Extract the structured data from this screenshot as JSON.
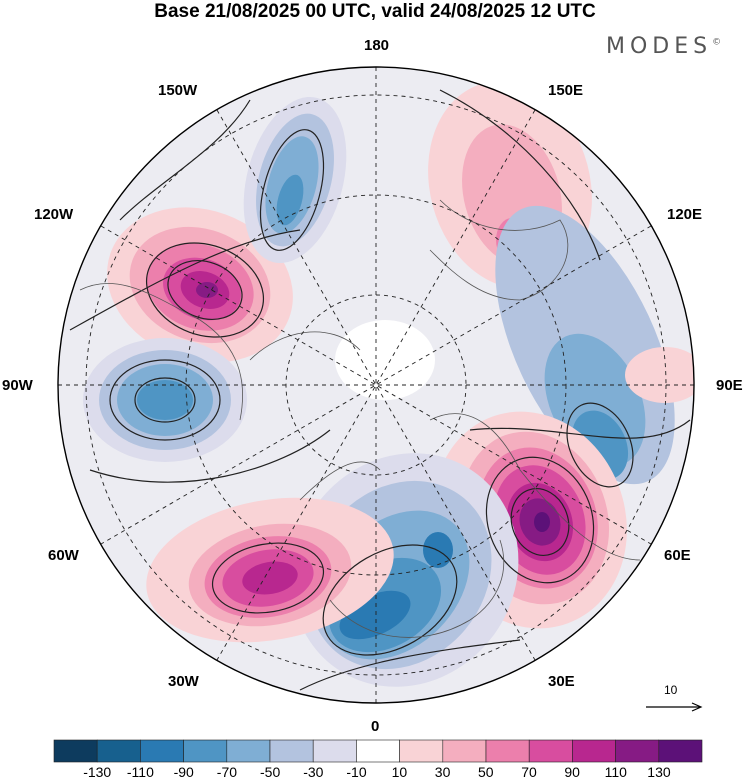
{
  "title": "Base 21/08/2025 00 UTC, valid 24/08/2025 12 UTC",
  "brand": {
    "name": "MODES",
    "mark": "©"
  },
  "longitude_labels": [
    "180",
    "150E",
    "120E",
    "90E",
    "60E",
    "30E",
    "0",
    "30W",
    "60W",
    "90W",
    "120W",
    "150W"
  ],
  "reference_vector": {
    "label": "10"
  },
  "colorbar": {
    "labels": [
      "-130",
      "-110",
      "-90",
      "-70",
      "-50",
      "-30",
      "-10",
      "10",
      "30",
      "50",
      "70",
      "90",
      "110",
      "130"
    ],
    "colors": [
      "#0d3b5e",
      "#17608e",
      "#2a7ab3",
      "#4f95c4",
      "#7faed4",
      "#b3c3df",
      "#dcdcec",
      "#ffffff",
      "#f9d3d6",
      "#f4aebf",
      "#ec7fac",
      "#d84d9f",
      "#b8278f",
      "#861b84",
      "#5c1178"
    ]
  },
  "anomalies": [
    {
      "name": "anom-pos-120w",
      "sign": "positive",
      "peak": 110
    },
    {
      "name": "anom-neg-90w",
      "sign": "negative",
      "peak": -70
    },
    {
      "name": "anom-neg-150w",
      "sign": "negative",
      "peak": -70
    },
    {
      "name": "anom-pos-150e",
      "sign": "positive",
      "peak": 50
    },
    {
      "name": "anom-neg-90e",
      "sign": "negative",
      "peak": -70
    },
    {
      "name": "anom-pos-60e",
      "sign": "positive",
      "peak": 130
    },
    {
      "name": "anom-neg-15e",
      "sign": "negative",
      "peak": -90
    },
    {
      "name": "anom-pos-45w",
      "sign": "positive",
      "peak": 110
    }
  ]
}
